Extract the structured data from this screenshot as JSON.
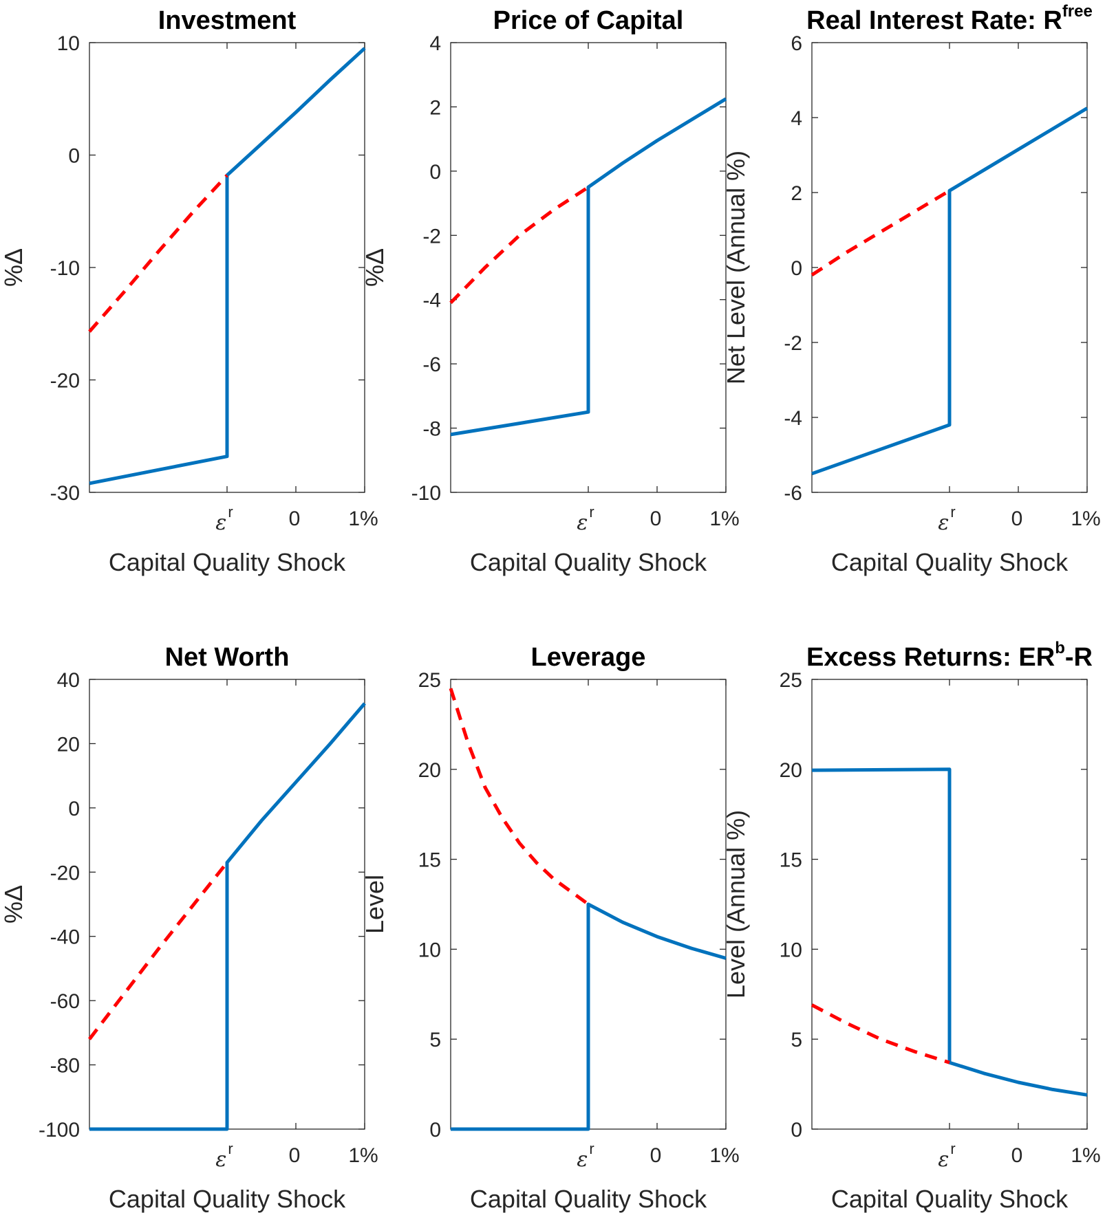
{
  "figure": {
    "background": "#ffffff"
  },
  "colors": {
    "solid": "#0072BD",
    "dashed": "#FF0000",
    "axis": "#262626"
  },
  "chart_data": [
    {
      "type": "line",
      "title": "Investment",
      "title_sup": "",
      "ylabel": "%Δ",
      "xlabel": "Capital Quality Shock",
      "ylim": [
        -30,
        10
      ],
      "yticks": [
        -30,
        -20,
        -10,
        0,
        10
      ],
      "xlim": [
        0,
        1
      ],
      "xticks": [
        {
          "pos": 0.5,
          "label": "ε",
          "sup": "r"
        },
        {
          "pos": 0.75,
          "label": "0"
        },
        {
          "pos": 1.0,
          "label": "1%"
        }
      ],
      "series": [
        {
          "style": "solid",
          "points": [
            [
              0,
              -29.2
            ],
            [
              0.25,
              -28.0
            ],
            [
              0.5,
              -26.8
            ],
            [
              0.5,
              -1.8
            ],
            [
              0.625,
              1.0
            ],
            [
              0.75,
              3.8
            ],
            [
              0.875,
              6.7
            ],
            [
              1.0,
              9.5
            ]
          ]
        },
        {
          "style": "dashed",
          "points": [
            [
              0,
              -15.7
            ],
            [
              0.125,
              -12.2
            ],
            [
              0.25,
              -8.6
            ],
            [
              0.375,
              -5.1
            ],
            [
              0.5,
              -1.8
            ]
          ]
        }
      ]
    },
    {
      "type": "line",
      "title": "Price of Capital",
      "title_sup": "",
      "ylabel": "%Δ",
      "xlabel": "Capital Quality Shock",
      "ylim": [
        -10,
        4
      ],
      "yticks": [
        -10,
        -8,
        -6,
        -4,
        -2,
        0,
        2,
        4
      ],
      "xlim": [
        0,
        1
      ],
      "xticks": [
        {
          "pos": 0.5,
          "label": "ε",
          "sup": "r"
        },
        {
          "pos": 0.75,
          "label": "0"
        },
        {
          "pos": 1.0,
          "label": "1%"
        }
      ],
      "series": [
        {
          "style": "solid",
          "points": [
            [
              0,
              -8.2
            ],
            [
              0.25,
              -7.85
            ],
            [
              0.5,
              -7.5
            ],
            [
              0.5,
              -0.5
            ],
            [
              0.625,
              0.25
            ],
            [
              0.75,
              0.95
            ],
            [
              0.875,
              1.6
            ],
            [
              1.0,
              2.25
            ]
          ]
        },
        {
          "style": "dashed",
          "points": [
            [
              0,
              -4.1
            ],
            [
              0.125,
              -3.0
            ],
            [
              0.25,
              -2.0
            ],
            [
              0.375,
              -1.2
            ],
            [
              0.5,
              -0.5
            ]
          ]
        }
      ]
    },
    {
      "type": "line",
      "title": "Real Interest Rate: R",
      "title_sup": "free",
      "ylabel": "Net Level (Annual %)",
      "xlabel": "Capital Quality Shock",
      "ylim": [
        -6,
        6
      ],
      "yticks": [
        -6,
        -4,
        -2,
        0,
        2,
        4,
        6
      ],
      "xlim": [
        0,
        1
      ],
      "xticks": [
        {
          "pos": 0.5,
          "label": "ε",
          "sup": "r"
        },
        {
          "pos": 0.75,
          "label": "0"
        },
        {
          "pos": 1.0,
          "label": "1%"
        }
      ],
      "series": [
        {
          "style": "solid",
          "points": [
            [
              0,
              -5.5
            ],
            [
              0.25,
              -4.85
            ],
            [
              0.5,
              -4.2
            ],
            [
              0.5,
              2.05
            ],
            [
              0.625,
              2.6
            ],
            [
              0.75,
              3.15
            ],
            [
              0.875,
              3.7
            ],
            [
              1.0,
              4.25
            ]
          ]
        },
        {
          "style": "dashed",
          "points": [
            [
              0,
              -0.2
            ],
            [
              0.125,
              0.4
            ],
            [
              0.25,
              0.95
            ],
            [
              0.375,
              1.5
            ],
            [
              0.5,
              2.05
            ]
          ]
        }
      ]
    },
    {
      "type": "line",
      "title": "Net Worth",
      "title_sup": "",
      "ylabel": "%Δ",
      "xlabel": "Capital Quality Shock",
      "ylim": [
        -100,
        40
      ],
      "yticks": [
        -100,
        -80,
        -60,
        -40,
        -20,
        0,
        20,
        40
      ],
      "xlim": [
        0,
        1
      ],
      "xticks": [
        {
          "pos": 0.5,
          "label": "ε",
          "sup": "r"
        },
        {
          "pos": 0.75,
          "label": "0"
        },
        {
          "pos": 1.0,
          "label": "1%"
        }
      ],
      "series": [
        {
          "style": "solid",
          "points": [
            [
              0,
              -100
            ],
            [
              0.5,
              -100
            ],
            [
              0.5,
              -17
            ],
            [
              0.625,
              -4
            ],
            [
              0.75,
              8
            ],
            [
              0.875,
              20
            ],
            [
              1.0,
              32.5
            ]
          ]
        },
        {
          "style": "dashed",
          "points": [
            [
              0,
              -72
            ],
            [
              0.125,
              -58
            ],
            [
              0.25,
              -44
            ],
            [
              0.375,
              -30.5
            ],
            [
              0.5,
              -17
            ]
          ]
        }
      ]
    },
    {
      "type": "line",
      "title": "Leverage",
      "title_sup": "",
      "ylabel": "Level",
      "xlabel": "Capital Quality Shock",
      "ylim": [
        0,
        25
      ],
      "yticks": [
        0,
        5,
        10,
        15,
        20,
        25
      ],
      "xlim": [
        0,
        1
      ],
      "xticks": [
        {
          "pos": 0.5,
          "label": "ε",
          "sup": "r"
        },
        {
          "pos": 0.75,
          "label": "0"
        },
        {
          "pos": 1.0,
          "label": "1%"
        }
      ],
      "series": [
        {
          "style": "solid",
          "points": [
            [
              0,
              0
            ],
            [
              0.5,
              0
            ],
            [
              0.5,
              12.5
            ],
            [
              0.625,
              11.5
            ],
            [
              0.75,
              10.7
            ],
            [
              0.875,
              10.05
            ],
            [
              1.0,
              9.5
            ]
          ]
        },
        {
          "style": "dashed",
          "points": [
            [
              0,
              24.5
            ],
            [
              0.0625,
              21.5
            ],
            [
              0.125,
              19.0
            ],
            [
              0.1875,
              17.3
            ],
            [
              0.25,
              15.9
            ],
            [
              0.3125,
              14.8
            ],
            [
              0.375,
              13.9
            ],
            [
              0.4375,
              13.2
            ],
            [
              0.5,
              12.5
            ]
          ]
        }
      ]
    },
    {
      "type": "line",
      "title": "Excess Returns: ER",
      "title_sup": "b",
      "title_tail": "-R",
      "ylabel": "Level (Annual %)",
      "xlabel": "Capital Quality Shock",
      "ylim": [
        0,
        25
      ],
      "yticks": [
        0,
        5,
        10,
        15,
        20,
        25
      ],
      "xlim": [
        0,
        1
      ],
      "xticks": [
        {
          "pos": 0.5,
          "label": "ε",
          "sup": "r"
        },
        {
          "pos": 0.75,
          "label": "0"
        },
        {
          "pos": 1.0,
          "label": "1%"
        }
      ],
      "series": [
        {
          "style": "solid",
          "points": [
            [
              0,
              19.95
            ],
            [
              0.5,
              20.0
            ],
            [
              0.5,
              3.7
            ],
            [
              0.625,
              3.1
            ],
            [
              0.75,
              2.6
            ],
            [
              0.875,
              2.2
            ],
            [
              1.0,
              1.9
            ]
          ]
        },
        {
          "style": "dashed",
          "points": [
            [
              0,
              6.9
            ],
            [
              0.125,
              5.9
            ],
            [
              0.25,
              5.0
            ],
            [
              0.375,
              4.3
            ],
            [
              0.5,
              3.7
            ]
          ]
        }
      ]
    }
  ]
}
